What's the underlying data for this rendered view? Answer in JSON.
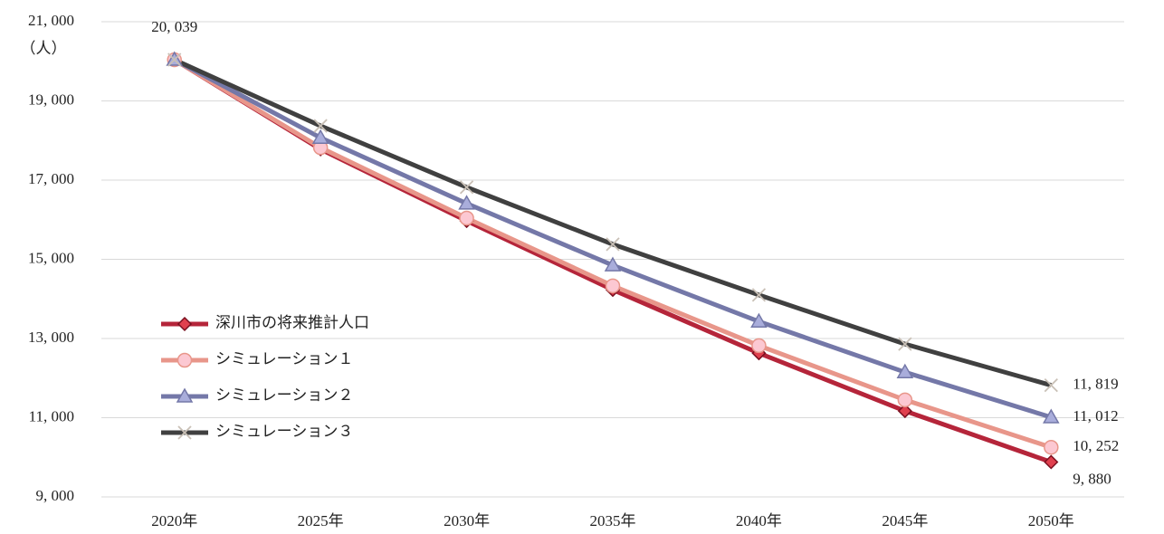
{
  "chart_data": {
    "type": "line",
    "y_unit": "（人）",
    "categories": [
      "2020年",
      "2025年",
      "2030年",
      "2035年",
      "2040年",
      "2045年",
      "2050年"
    ],
    "series": [
      {
        "name": "深川市の将来推計人口",
        "color": "#b5253a",
        "marker": "diamond",
        "marker_color": "#e0404e",
        "values": [
          20039,
          17780,
          15970,
          14230,
          12630,
          11170,
          9880
        ],
        "value_labels": [
          "20, 039",
          null,
          null,
          null,
          null,
          null,
          "9, 880"
        ]
      },
      {
        "name": "シミュレーション１",
        "color": "#e8968a",
        "marker": "circle",
        "marker_color": "#fcc8d2",
        "values": [
          20039,
          17820,
          16040,
          14330,
          12820,
          11450,
          10252
        ],
        "value_labels": [
          null,
          null,
          null,
          null,
          null,
          null,
          "10, 252"
        ]
      },
      {
        "name": "シミュレーション２",
        "color": "#7478a8",
        "marker": "triangle",
        "marker_color": "#a9addb",
        "values": [
          20039,
          18070,
          16410,
          14850,
          13430,
          12150,
          11012
        ],
        "value_labels": [
          null,
          null,
          null,
          null,
          null,
          null,
          "11, 012"
        ]
      },
      {
        "name": "シミュレーション３",
        "color": "#404040",
        "marker": "cross",
        "marker_color": "#c9c0b6",
        "values": [
          20039,
          18370,
          16820,
          15380,
          14100,
          12860,
          11819
        ],
        "value_labels": [
          null,
          null,
          null,
          null,
          null,
          null,
          "11, 819"
        ]
      }
    ],
    "ylim": [
      9000,
      21000
    ],
    "yticks": [
      {
        "value": 9000,
        "label": "9, 000"
      },
      {
        "value": 11000,
        "label": "11, 000"
      },
      {
        "value": 13000,
        "label": "13, 000"
      },
      {
        "value": 15000,
        "label": "15, 000"
      },
      {
        "value": 17000,
        "label": "17, 000"
      },
      {
        "value": 19000,
        "label": "19, 000"
      },
      {
        "value": 21000,
        "label": "21, 000"
      }
    ],
    "grid": true,
    "legend": "left"
  }
}
